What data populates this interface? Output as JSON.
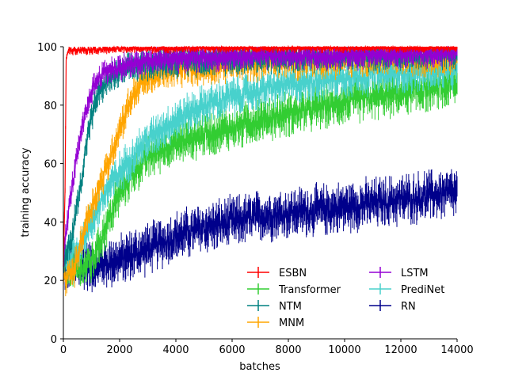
{
  "chart_data": {
    "type": "line",
    "title": "",
    "xlabel": "batches",
    "ylabel": "training accuracy",
    "xlim": [
      0,
      14000
    ],
    "ylim": [
      0,
      100
    ],
    "xticks": [
      0,
      2000,
      4000,
      6000,
      8000,
      10000,
      12000,
      14000
    ],
    "yticks": [
      0,
      20,
      40,
      60,
      80,
      100
    ],
    "grid": false,
    "legend_position": "lower-right",
    "legend_columns": 2,
    "error_bars": true,
    "series": [
      {
        "name": "ESBN",
        "color": "#ff0000",
        "noise": 0.8,
        "x": [
          0,
          60,
          100,
          150,
          300,
          1000,
          2000,
          5000,
          14000
        ],
        "y": [
          25,
          50,
          96,
          98.5,
          99,
          99,
          99.3,
          99.6,
          99.8
        ]
      },
      {
        "name": "Transformer",
        "color": "#32cd32",
        "noise": 3.5,
        "x": [
          0,
          500,
          1000,
          1500,
          2000,
          2500,
          3000,
          3500,
          4000,
          5000,
          6000,
          7000,
          8000,
          9000,
          10000,
          11000,
          12000,
          13000,
          14000
        ],
        "y": [
          25,
          24,
          26,
          38,
          50,
          57,
          62,
          65,
          67,
          70,
          72,
          75,
          77,
          79,
          81,
          82.5,
          84,
          85.5,
          87
        ]
      },
      {
        "name": "NTM",
        "color": "#008080",
        "noise": 2.5,
        "x": [
          0,
          300,
          600,
          900,
          1200,
          1500,
          2000,
          2500,
          3000,
          4000,
          6000,
          8000,
          10000,
          12000,
          14000
        ],
        "y": [
          25,
          35,
          52,
          72,
          83,
          88,
          91,
          93,
          94,
          95,
          96,
          96.5,
          97,
          97,
          97.5
        ]
      },
      {
        "name": "MNM",
        "color": "#ffa500",
        "noise": 2.8,
        "x": [
          0,
          400,
          800,
          1200,
          1600,
          2000,
          2400,
          2800,
          3200,
          4000,
          5000,
          6000,
          8000,
          10000,
          12000,
          14000
        ],
        "y": [
          20,
          24,
          40,
          50,
          60,
          72,
          82,
          88,
          90,
          92,
          93,
          94,
          95,
          95.5,
          96,
          96.5
        ]
      },
      {
        "name": "LSTM",
        "color": "#9400d3",
        "noise": 2.2,
        "x": [
          0,
          200,
          400,
          700,
          1000,
          1300,
          1600,
          2000,
          2500,
          3000,
          4000,
          6000,
          8000,
          10000,
          12000,
          14000
        ],
        "y": [
          28,
          45,
          58,
          73,
          85,
          90,
          92,
          93,
          94,
          95,
          96,
          96.5,
          97,
          97,
          97.5,
          98
        ]
      },
      {
        "name": "PrediNet",
        "color": "#48d1cc",
        "noise": 3.2,
        "x": [
          0,
          500,
          1000,
          1500,
          2000,
          2500,
          3000,
          3500,
          4000,
          5000,
          6000,
          7000,
          8000,
          9000,
          10000,
          11000,
          12000,
          13000,
          14000
        ],
        "y": [
          27,
          30,
          40,
          50,
          57,
          63,
          68,
          72,
          75,
          80,
          83,
          85,
          87,
          88.5,
          89.5,
          90.5,
          91,
          91.5,
          92
        ]
      },
      {
        "name": "RN",
        "color": "#00008b",
        "noise": 4.0,
        "x": [
          0,
          1000,
          2000,
          3000,
          4000,
          5000,
          6000,
          7000,
          8000,
          9000,
          10000,
          11000,
          12000,
          13000,
          14000
        ],
        "y": [
          25,
          25,
          27,
          31,
          35,
          38,
          40,
          42,
          43,
          44,
          45,
          46.5,
          47.5,
          49,
          50
        ]
      }
    ]
  }
}
